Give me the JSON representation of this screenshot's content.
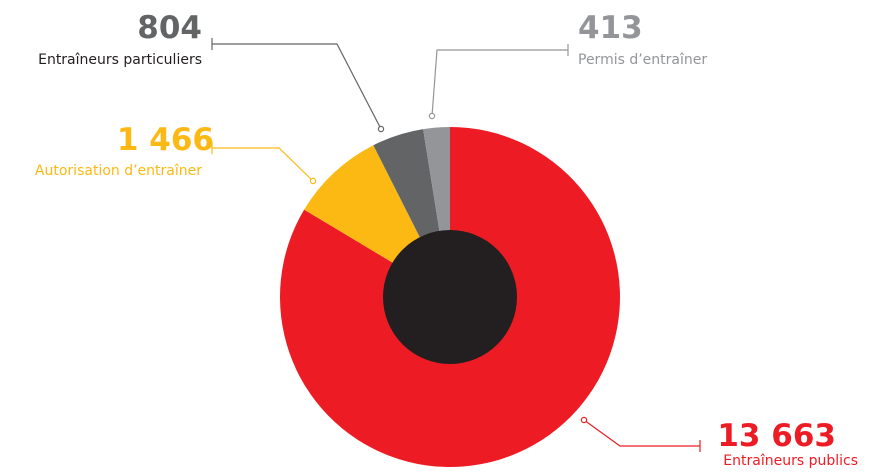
{
  "chart_data": {
    "type": "pie",
    "variant": "donut",
    "title": "",
    "hole_color": "#231f20",
    "slices": [
      {
        "label": "Entraîneurs publics",
        "value": 13663,
        "value_text": "13 663",
        "color": "#ed1c24"
      },
      {
        "label": "Autorisation d’entraîner",
        "value": 1466,
        "value_text": "1 466",
        "color": "#fdb913"
      },
      {
        "label": "Entraîneurs particuliers",
        "value": 804,
        "value_text": "804",
        "color": "#636466"
      },
      {
        "label": "Permis d’entraîner",
        "value": 413,
        "value_text": "413",
        "color": "#939598"
      }
    ]
  }
}
